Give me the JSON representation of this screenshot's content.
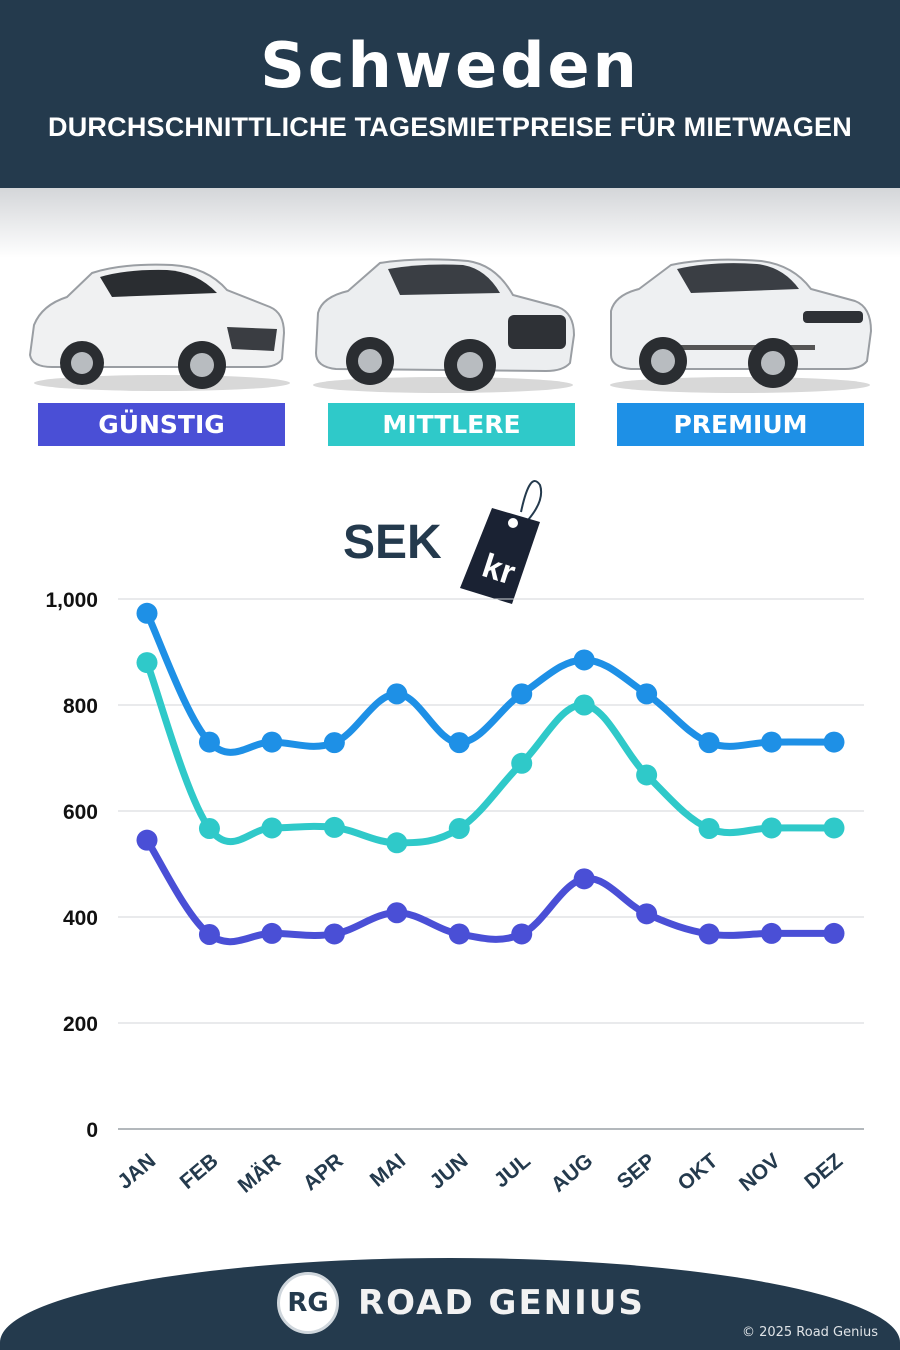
{
  "header": {
    "title": "Schweden",
    "subtitle": "DURCHSCHNITTLICHE TAGESMIETPREISE FÜR MIETWAGEN"
  },
  "categories": [
    {
      "label": "GÜNSTIG",
      "color": "#4a4fd6"
    },
    {
      "label": "MITTLERE",
      "color": "#2fc9c9"
    },
    {
      "label": "PREMIUM",
      "color": "#1e90e6"
    }
  ],
  "currency": {
    "code": "SEK",
    "tag_text": "kr"
  },
  "chart_data": {
    "type": "line",
    "title": "",
    "xlabel": "",
    "ylabel": "",
    "categories": [
      "JAN",
      "FEB",
      "MÄR",
      "APR",
      "MAI",
      "JUN",
      "JUL",
      "AUG",
      "SEP",
      "OKT",
      "NOV",
      "DEZ"
    ],
    "y_ticks": [
      "0",
      "200",
      "400",
      "600",
      "800",
      "1,000"
    ],
    "ylim": [
      0,
      1000
    ],
    "grid": true,
    "series": [
      {
        "name": "GÜNSTIG",
        "color": "#4a4fd6",
        "values": [
          545,
          367,
          369,
          368,
          408,
          368,
          368,
          472,
          406,
          368,
          369,
          369
        ]
      },
      {
        "name": "MITTLERE",
        "color": "#2fc9c9",
        "values": [
          880,
          567,
          568,
          569,
          540,
          567,
          690,
          800,
          668,
          567,
          568,
          568
        ]
      },
      {
        "name": "PREMIUM",
        "color": "#1e90e6",
        "values": [
          973,
          730,
          730,
          729,
          821,
          729,
          821,
          885,
          821,
          729,
          730,
          730
        ]
      }
    ]
  },
  "footer": {
    "logo_text": "RG",
    "brand": "ROAD GENIUS",
    "copyright": "© 2025 Road Genius"
  }
}
